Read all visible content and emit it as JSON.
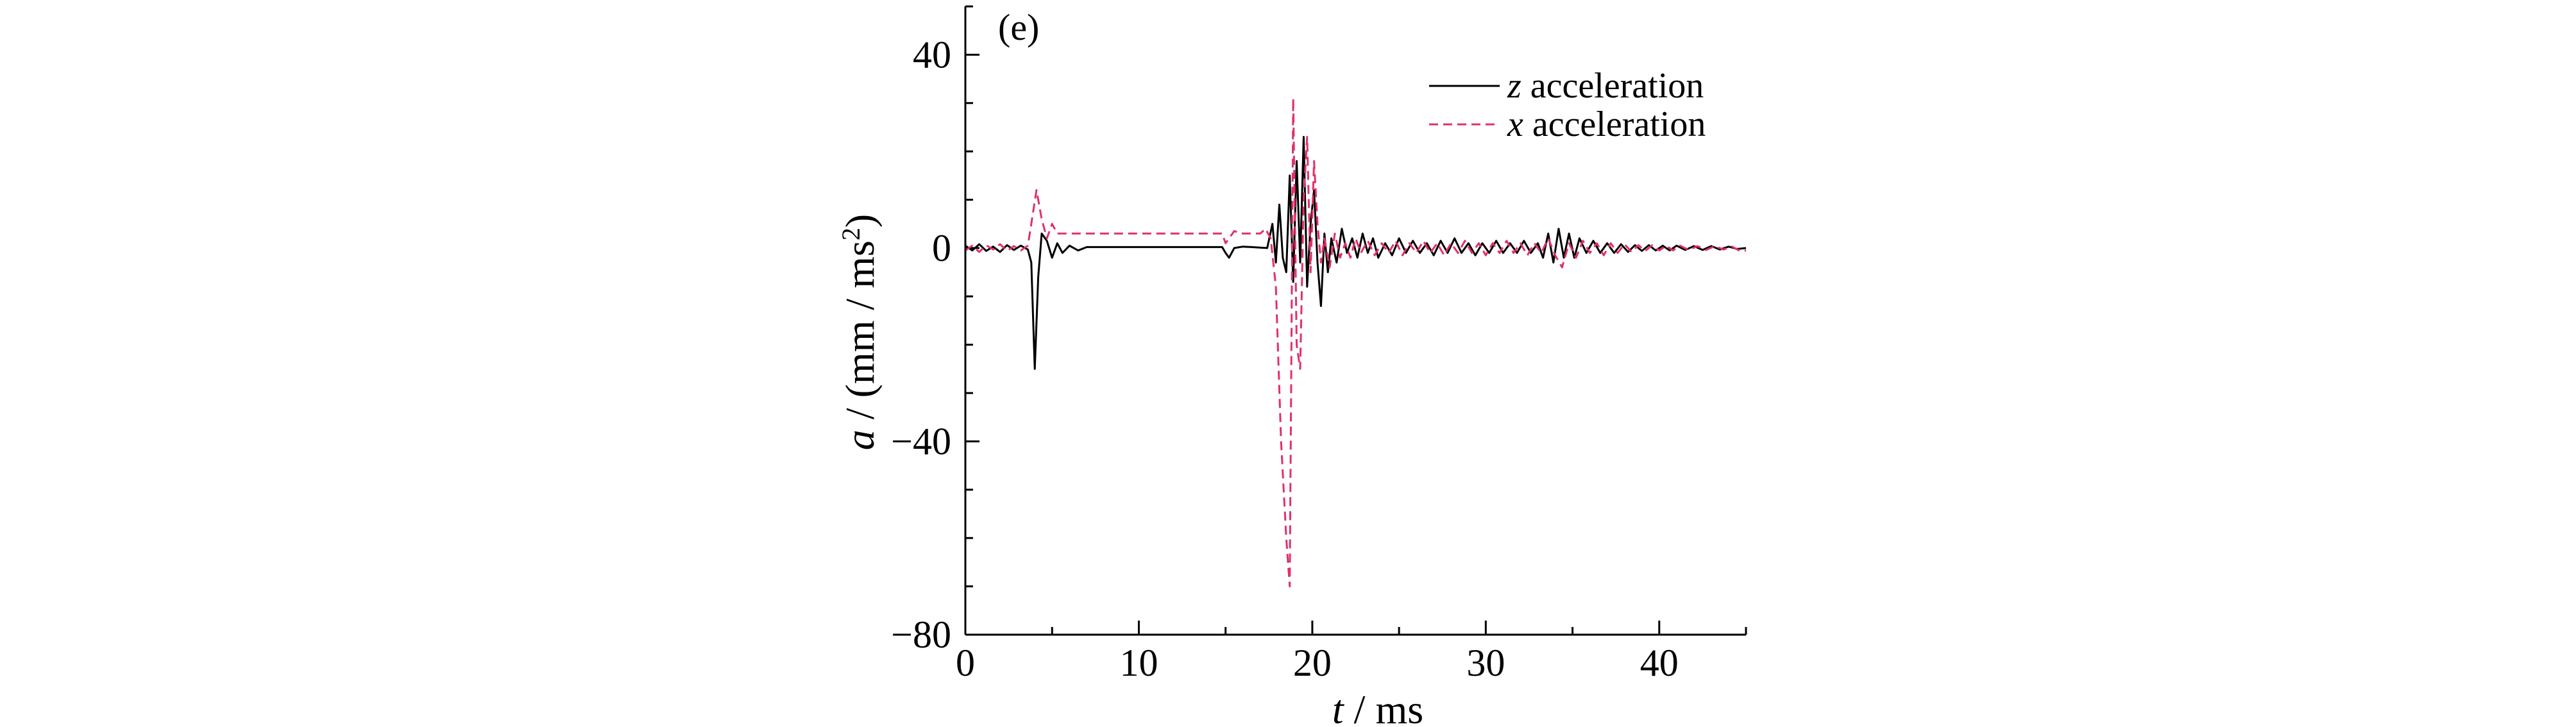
{
  "chart_data": {
    "type": "line",
    "panel_label": "(e)",
    "xlabel_var": "t",
    "xlabel_unit": "ms",
    "ylabel_var": "a",
    "ylabel_unit_prefix": "(mm / ms",
    "ylabel_unit_sup": "2",
    "ylabel_unit_suffix": ")",
    "xlim": [
      0,
      45
    ],
    "ylim": [
      -80,
      50
    ],
    "x_ticks": [
      0,
      10,
      20,
      30,
      40
    ],
    "y_ticks": [
      -80,
      -40,
      0,
      40
    ],
    "x_tick_labels": [
      "0",
      "10",
      "20",
      "30",
      "40"
    ],
    "y_tick_labels": [
      "−80",
      "−40",
      "0",
      "40"
    ],
    "legend_position": "top-right",
    "series": [
      {
        "var": "z",
        "name": "acceleration",
        "color": "#000000",
        "dash": "solid",
        "points": [
          [
            0,
            0.5
          ],
          [
            0.4,
            -0.5
          ],
          [
            0.8,
            0.8
          ],
          [
            1.2,
            -0.6
          ],
          [
            1.6,
            0.3
          ],
          [
            2.0,
            -0.8
          ],
          [
            2.4,
            0.6
          ],
          [
            2.8,
            -0.4
          ],
          [
            3.2,
            0.5
          ],
          [
            3.6,
            -0.3
          ],
          [
            3.8,
            -3
          ],
          [
            4.0,
            -25
          ],
          [
            4.2,
            -6
          ],
          [
            4.4,
            3
          ],
          [
            4.7,
            1.5
          ],
          [
            5.0,
            -2
          ],
          [
            5.3,
            1
          ],
          [
            5.6,
            -1
          ],
          [
            6.0,
            0.5
          ],
          [
            6.5,
            -0.5
          ],
          [
            7,
            0.2
          ],
          [
            8,
            0.2
          ],
          [
            9,
            0.2
          ],
          [
            10,
            0.2
          ],
          [
            11,
            0.2
          ],
          [
            12,
            0.2
          ],
          [
            13,
            0.2
          ],
          [
            14,
            0.2
          ],
          [
            14.8,
            0.2
          ],
          [
            15.0,
            -1
          ],
          [
            15.2,
            -2
          ],
          [
            15.5,
            0
          ],
          [
            16,
            0.3
          ],
          [
            16.5,
            0.2
          ],
          [
            17,
            0.1
          ],
          [
            17.4,
            0
          ],
          [
            17.7,
            5
          ],
          [
            17.9,
            -3
          ],
          [
            18.1,
            9
          ],
          [
            18.3,
            -2
          ],
          [
            18.5,
            -5
          ],
          [
            18.7,
            15
          ],
          [
            18.9,
            -7
          ],
          [
            19.1,
            18
          ],
          [
            19.3,
            -3
          ],
          [
            19.5,
            23
          ],
          [
            19.7,
            -8
          ],
          [
            19.9,
            5
          ],
          [
            20.1,
            12
          ],
          [
            20.3,
            -3
          ],
          [
            20.5,
            -12
          ],
          [
            20.7,
            3
          ],
          [
            20.9,
            -5
          ],
          [
            21.1,
            2
          ],
          [
            21.4,
            -3
          ],
          [
            21.7,
            4
          ],
          [
            22,
            -1
          ],
          [
            22.3,
            2
          ],
          [
            22.6,
            -2
          ],
          [
            22.9,
            3
          ],
          [
            23.2,
            -1
          ],
          [
            23.5,
            2
          ],
          [
            23.8,
            -2
          ],
          [
            24.2,
            1
          ],
          [
            24.6,
            -1.5
          ],
          [
            25,
            2
          ],
          [
            25.4,
            -1
          ],
          [
            25.8,
            1.5
          ],
          [
            26.2,
            -1
          ],
          [
            26.6,
            1
          ],
          [
            27,
            -1.5
          ],
          [
            27.4,
            1.5
          ],
          [
            27.8,
            -1
          ],
          [
            28.2,
            2
          ],
          [
            28.6,
            -1
          ],
          [
            29,
            1
          ],
          [
            29.4,
            -1.5
          ],
          [
            29.8,
            1
          ],
          [
            30.2,
            -1
          ],
          [
            30.6,
            1.5
          ],
          [
            31,
            -1
          ],
          [
            31.4,
            1
          ],
          [
            31.8,
            -1
          ],
          [
            32.2,
            1.5
          ],
          [
            32.6,
            -1
          ],
          [
            33,
            1
          ],
          [
            33.3,
            -2
          ],
          [
            33.6,
            3
          ],
          [
            33.9,
            -3
          ],
          [
            34.2,
            4
          ],
          [
            34.5,
            -2
          ],
          [
            34.8,
            3
          ],
          [
            35.1,
            -2
          ],
          [
            35.4,
            2
          ],
          [
            35.8,
            -1
          ],
          [
            36.2,
            1.5
          ],
          [
            36.6,
            -1
          ],
          [
            37,
            1
          ],
          [
            37.4,
            -1
          ],
          [
            37.8,
            0.8
          ],
          [
            38.2,
            -0.8
          ],
          [
            38.6,
            0.6
          ],
          [
            39,
            -0.6
          ],
          [
            39.4,
            0.6
          ],
          [
            39.8,
            -0.5
          ],
          [
            40.2,
            0.5
          ],
          [
            40.6,
            -0.5
          ],
          [
            41,
            0.5
          ],
          [
            41.5,
            -0.4
          ],
          [
            42,
            0.4
          ],
          [
            42.5,
            -0.4
          ],
          [
            43,
            0.4
          ],
          [
            43.5,
            -0.3
          ],
          [
            44,
            0.3
          ],
          [
            44.5,
            -0.2
          ],
          [
            45,
            0
          ]
        ]
      },
      {
        "var": "x",
        "name": "acceleration",
        "color": "#e0306e",
        "dash": "dashed",
        "points": [
          [
            0,
            -0.5
          ],
          [
            0.4,
            0.5
          ],
          [
            0.8,
            -0.8
          ],
          [
            1.2,
            0.6
          ],
          [
            1.6,
            -0.3
          ],
          [
            2.0,
            0.8
          ],
          [
            2.4,
            -0.6
          ],
          [
            2.8,
            0.4
          ],
          [
            3.2,
            -0.5
          ],
          [
            3.6,
            0.5
          ],
          [
            3.8,
            5
          ],
          [
            4.1,
            12
          ],
          [
            4.4,
            6
          ],
          [
            4.7,
            2
          ],
          [
            5.0,
            5
          ],
          [
            5.3,
            3
          ],
          [
            5.6,
            3
          ],
          [
            6,
            3
          ],
          [
            7,
            3
          ],
          [
            8,
            3
          ],
          [
            9,
            3
          ],
          [
            10,
            3
          ],
          [
            11,
            3
          ],
          [
            12,
            3
          ],
          [
            13,
            3
          ],
          [
            14,
            3
          ],
          [
            14.8,
            3
          ],
          [
            15.0,
            1
          ],
          [
            15.2,
            2
          ],
          [
            15.5,
            3.5
          ],
          [
            16,
            3
          ],
          [
            17,
            3
          ],
          [
            17.3,
            4
          ],
          [
            17.6,
            2
          ],
          [
            17.9,
            -8
          ],
          [
            18.2,
            -40
          ],
          [
            18.5,
            -60
          ],
          [
            18.7,
            -70
          ],
          [
            18.9,
            31
          ],
          [
            19.1,
            -20
          ],
          [
            19.3,
            -25
          ],
          [
            19.5,
            10
          ],
          [
            19.7,
            23
          ],
          [
            19.9,
            -5
          ],
          [
            20.1,
            18
          ],
          [
            20.3,
            5
          ],
          [
            20.5,
            -3
          ],
          [
            20.7,
            2
          ],
          [
            21.0,
            -4
          ],
          [
            21.3,
            3
          ],
          [
            21.6,
            -2
          ],
          [
            21.9,
            1
          ],
          [
            22.2,
            -2
          ],
          [
            22.5,
            2
          ],
          [
            22.8,
            -1
          ],
          [
            23.2,
            1.5
          ],
          [
            23.6,
            -1.5
          ],
          [
            24,
            1
          ],
          [
            24.4,
            -1
          ],
          [
            24.8,
            1.5
          ],
          [
            25.2,
            -1.5
          ],
          [
            25.6,
            1
          ],
          [
            26,
            -1
          ],
          [
            26.4,
            1.5
          ],
          [
            26.8,
            -1
          ],
          [
            27.2,
            1
          ],
          [
            27.6,
            -1.5
          ],
          [
            28,
            1
          ],
          [
            28.4,
            -1
          ],
          [
            28.8,
            1.5
          ],
          [
            29.2,
            -1
          ],
          [
            29.6,
            1
          ],
          [
            30,
            -1.5
          ],
          [
            30.4,
            1
          ],
          [
            30.8,
            -1
          ],
          [
            31.2,
            1.5
          ],
          [
            31.6,
            -1
          ],
          [
            32,
            1
          ],
          [
            32.4,
            -1.5
          ],
          [
            32.8,
            1
          ],
          [
            33.2,
            -1
          ],
          [
            33.6,
            2
          ],
          [
            34,
            -1.5
          ],
          [
            34.4,
            -4
          ],
          [
            34.8,
            1
          ],
          [
            35.2,
            -2
          ],
          [
            35.6,
            1.5
          ],
          [
            36,
            -1
          ],
          [
            36.4,
            1
          ],
          [
            36.8,
            -1.5
          ],
          [
            37.2,
            1
          ],
          [
            37.6,
            -1
          ],
          [
            38,
            0.8
          ],
          [
            38.4,
            -0.8
          ],
          [
            38.8,
            0.6
          ],
          [
            39.2,
            -0.6
          ],
          [
            39.6,
            0.6
          ],
          [
            40,
            -0.5
          ],
          [
            40.4,
            0.5
          ],
          [
            40.8,
            -0.5
          ],
          [
            41.2,
            0.5
          ],
          [
            41.7,
            -0.4
          ],
          [
            42.2,
            0.4
          ],
          [
            42.7,
            -0.4
          ],
          [
            43.2,
            0.4
          ],
          [
            43.7,
            -0.3
          ],
          [
            44.2,
            0.3
          ],
          [
            44.6,
            -0.5
          ],
          [
            45,
            -0.5
          ]
        ]
      }
    ]
  }
}
